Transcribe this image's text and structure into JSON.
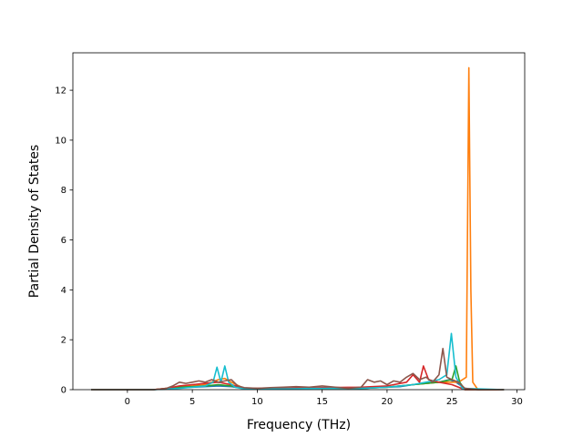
{
  "chart_data": {
    "type": "line",
    "title": "",
    "xlabel": "Frequency (THz)",
    "ylabel": "Partial Density of States",
    "xlim": [
      -4.2,
      30.6
    ],
    "ylim": [
      0,
      13.5
    ],
    "xticks": [
      0,
      5,
      10,
      15,
      20,
      25,
      30
    ],
    "yticks": [
      0,
      2,
      4,
      6,
      8,
      10,
      12
    ],
    "grid": false,
    "legend": "none",
    "series": [
      {
        "color": "#1f77b4",
        "x": [
          -2.8,
          2,
          3,
          4,
          5,
          6,
          7,
          8,
          9,
          12,
          15,
          18,
          19,
          20,
          21,
          22,
          23,
          24,
          24.8,
          25.3,
          26,
          27,
          29
        ],
        "y": [
          0,
          0,
          0.03,
          0.08,
          0.1,
          0.12,
          0.15,
          0.12,
          0.05,
          0.04,
          0.05,
          0.03,
          0.08,
          0.1,
          0.12,
          0.2,
          0.25,
          0.3,
          0.4,
          0.3,
          0.05,
          0,
          0
        ]
      },
      {
        "color": "#ff7f0e",
        "x": [
          -2.8,
          2,
          3,
          4,
          5,
          6,
          7,
          7.5,
          8,
          9,
          12,
          15,
          18,
          20,
          22,
          24,
          25.5,
          26.1,
          26.3,
          26.45,
          26.6,
          27,
          29
        ],
        "y": [
          0,
          0,
          0.05,
          0.1,
          0.15,
          0.2,
          0.4,
          0.45,
          0.3,
          0.05,
          0.03,
          0.05,
          0.05,
          0.1,
          0.2,
          0.3,
          0.3,
          0.5,
          12.9,
          4,
          0.3,
          0,
          0
        ]
      },
      {
        "color": "#2ca02c",
        "x": [
          -2.8,
          2,
          3,
          4,
          5,
          6,
          7,
          8,
          9,
          12,
          15,
          18,
          20,
          22,
          24,
          25,
          25.3,
          25.6,
          26,
          29
        ],
        "y": [
          0,
          0,
          0.04,
          0.1,
          0.12,
          0.15,
          0.2,
          0.15,
          0.05,
          0.04,
          0.06,
          0.05,
          0.1,
          0.2,
          0.3,
          0.4,
          0.95,
          0.3,
          0,
          0
        ]
      },
      {
        "color": "#d62728",
        "x": [
          -2.8,
          2,
          3,
          4,
          5,
          6,
          7,
          8,
          9,
          12,
          15,
          18,
          20,
          21.5,
          22,
          22.5,
          22.8,
          23.2,
          24,
          25,
          26,
          29
        ],
        "y": [
          0,
          0,
          0.05,
          0.15,
          0.2,
          0.25,
          0.3,
          0.2,
          0.05,
          0.05,
          0.08,
          0.1,
          0.15,
          0.3,
          0.6,
          0.3,
          0.95,
          0.4,
          0.3,
          0.2,
          0,
          0
        ]
      },
      {
        "color": "#17becf",
        "x": [
          -2.8,
          2,
          4,
          5,
          6,
          6.6,
          6.9,
          7.2,
          7.5,
          7.8,
          8.3,
          9,
          12,
          15,
          18,
          20,
          22,
          23,
          24,
          24.6,
          24.95,
          25.3,
          25.8,
          29
        ],
        "y": [
          0,
          0,
          0.05,
          0.1,
          0.15,
          0.3,
          0.9,
          0.3,
          0.95,
          0.3,
          0.1,
          0.03,
          0.03,
          0.05,
          0.05,
          0.1,
          0.2,
          0.3,
          0.4,
          0.6,
          2.25,
          0.5,
          0.05,
          0
        ]
      },
      {
        "color": "#8c564b",
        "x": [
          -2.8,
          2,
          3,
          3.5,
          4,
          4.5,
          5,
          5.5,
          6,
          6.5,
          7,
          7.5,
          8,
          8.5,
          9,
          10,
          11,
          12,
          13,
          14,
          15,
          16,
          17,
          18,
          18.5,
          19,
          19.5,
          20,
          20.5,
          21,
          21.5,
          22,
          22.5,
          23,
          23.5,
          24,
          24.3,
          24.6,
          25,
          25.5,
          26,
          27,
          29
        ],
        "y": [
          0,
          0,
          0.05,
          0.15,
          0.3,
          0.25,
          0.3,
          0.35,
          0.3,
          0.4,
          0.3,
          0.35,
          0.4,
          0.15,
          0.08,
          0.05,
          0.08,
          0.1,
          0.12,
          0.1,
          0.15,
          0.1,
          0.05,
          0.1,
          0.4,
          0.3,
          0.35,
          0.2,
          0.35,
          0.3,
          0.5,
          0.65,
          0.4,
          0.5,
          0.3,
          0.6,
          1.65,
          0.5,
          0.4,
          0.3,
          0.05,
          0,
          0
        ]
      }
    ]
  }
}
